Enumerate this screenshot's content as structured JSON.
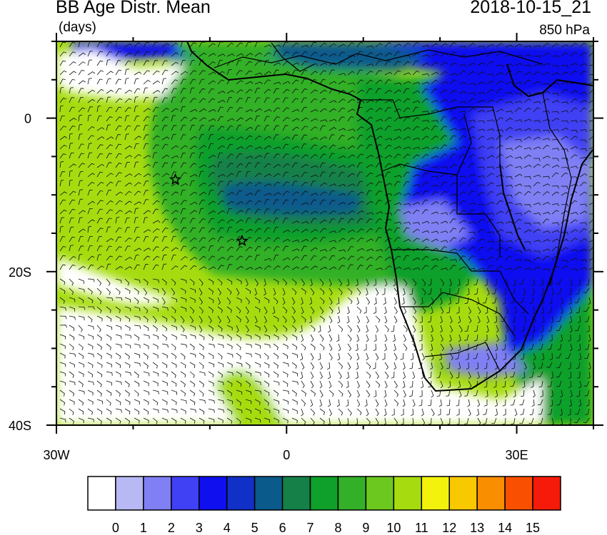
{
  "header": {
    "title": "BB Age Distr. Mean",
    "units": "(days)",
    "datetime": "2018-10-15_21",
    "level": "850 hPa"
  },
  "map": {
    "lon_range": [
      -30,
      40
    ],
    "lat_range": [
      -40,
      10
    ],
    "x_tick_labels": [
      {
        "lon": -30,
        "label": "30W"
      },
      {
        "lon": 0,
        "label": "0"
      },
      {
        "lon": 30,
        "label": "30E"
      }
    ],
    "y_tick_labels": [
      {
        "lat": 0,
        "label": "0"
      },
      {
        "lat": -20,
        "label": "20S"
      },
      {
        "lat": -40,
        "label": "40S"
      }
    ],
    "markers": [
      {
        "name": "star-1",
        "lon": -14.5,
        "lat": -8
      },
      {
        "name": "star-2",
        "lon": -5.8,
        "lat": -16
      }
    ]
  },
  "colorbar": {
    "levels": [
      "0",
      "1",
      "2",
      "3",
      "4",
      "5",
      "6",
      "7",
      "8",
      "9",
      "10",
      "11",
      "12",
      "13",
      "14",
      "15"
    ],
    "colors": [
      "#ffffff",
      "#b8b8f4",
      "#8080f4",
      "#4040f4",
      "#0f0ff0",
      "#1030c8",
      "#0a5a8c",
      "#158048",
      "#0ea02a",
      "#33b028",
      "#6cc81e",
      "#a6dc0f",
      "#f2f20c",
      "#f8c800",
      "#f88e00",
      "#f85000",
      "#f51a0a"
    ]
  }
}
